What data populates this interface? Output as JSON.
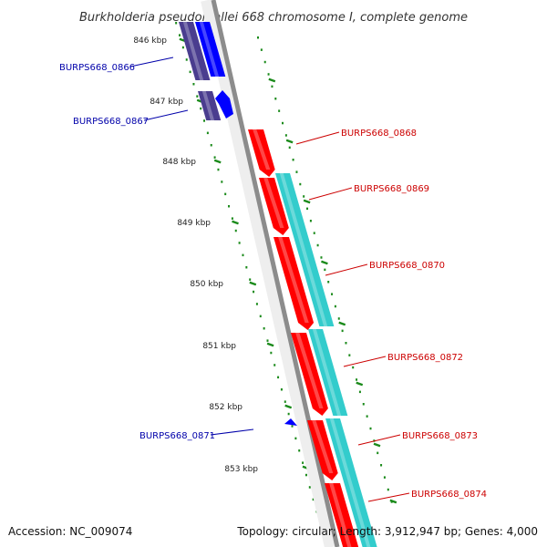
{
  "title": "Burkholderia pseudomallei 668 chromosome I, complete genome",
  "footer": {
    "accession": "Accession: NC_009074",
    "stats": "Topology: circular; Length: 3,912,947 bp; Genes: 4,000"
  },
  "colors": {
    "backbone": "#8c8c8c",
    "ticks": "#1a8a1a",
    "forward_gene": "#ff0000",
    "reverse_gene": "#0000ff",
    "forward_cds_ring": "#33cccc",
    "reverse_cds_ring": "#4a3d8f",
    "forward_label": "#cc0000",
    "reverse_label": "#0000aa"
  },
  "scale_labels": [
    "846 kbp",
    "847 kbp",
    "848 kbp",
    "849 kbp",
    "850 kbp",
    "851 kbp",
    "852 kbp",
    "853 kbp"
  ],
  "genes": [
    {
      "id": "BURPS668_0866",
      "strand": "reverse"
    },
    {
      "id": "BURPS668_0867",
      "strand": "reverse"
    },
    {
      "id": "BURPS668_0868",
      "strand": "forward"
    },
    {
      "id": "BURPS668_0869",
      "strand": "forward"
    },
    {
      "id": "BURPS668_0870",
      "strand": "forward"
    },
    {
      "id": "BURPS668_0871",
      "strand": "reverse"
    },
    {
      "id": "BURPS668_0872",
      "strand": "forward"
    },
    {
      "id": "BURPS668_0873",
      "strand": "forward"
    },
    {
      "id": "BURPS668_0874",
      "strand": "forward"
    }
  ]
}
